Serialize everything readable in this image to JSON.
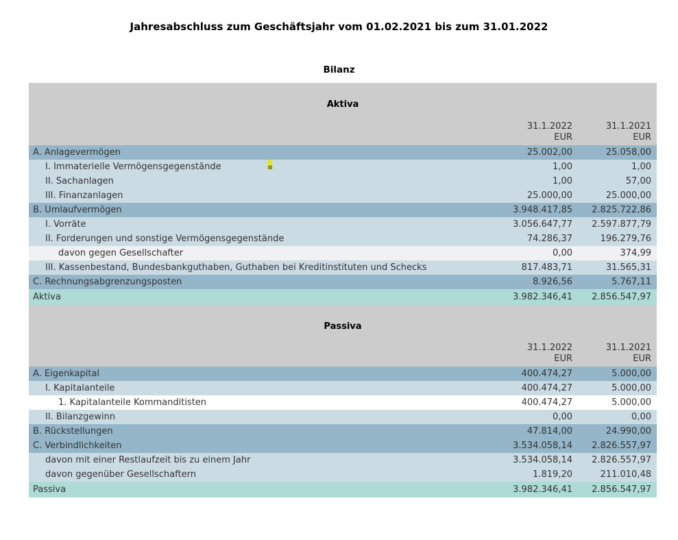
{
  "page": {
    "title": "Jahresabschluss zum Geschäftsjahr vom 01.02.2021 bis zum 31.01.2022",
    "subtitle": "Bilanz"
  },
  "columns": {
    "col1": "31.1.2022",
    "col2": "31.1.2021",
    "unit": "EUR"
  },
  "sections": [
    {
      "heading": "Aktiva",
      "rows": [
        {
          "label": "A. Anlagevermögen",
          "indent": 0,
          "style": "group",
          "v1": "25.002,00",
          "v2": "25.058,00"
        },
        {
          "label": "I. Immaterielle Vermögensgegenstände",
          "indent": 1,
          "style": "item",
          "v1": "1,00",
          "v2": "1,00"
        },
        {
          "label": "II. Sachanlagen",
          "indent": 1,
          "style": "item",
          "v1": "1,00",
          "v2": "57,00"
        },
        {
          "label": "III. Finanzanlagen",
          "indent": 1,
          "style": "item",
          "v1": "25.000,00",
          "v2": "25.000,00"
        },
        {
          "label": "B. Umlaufvermögen",
          "indent": 0,
          "style": "group",
          "v1": "3.948.417,85",
          "v2": "2.825.722,86"
        },
        {
          "label": "I. Vorräte",
          "indent": 1,
          "style": "item",
          "v1": "3.056.647,77",
          "v2": "2.597.877,79"
        },
        {
          "label": "II. Forderungen und sonstige Vermögensgegenstände",
          "indent": 1,
          "style": "item",
          "v1": "74.286,37",
          "v2": "196.279,76"
        },
        {
          "label": "davon gegen Gesellschafter",
          "indent": 2,
          "style": "plain",
          "v1": "0,00",
          "v2": "374,99"
        },
        {
          "label": "III. Kassenbestand, Bundesbankguthaben, Guthaben bei Kreditinstituten und Schecks",
          "indent": 1,
          "style": "item",
          "v1": "817.483,71",
          "v2": "31.565,31"
        },
        {
          "label": "C. Rechnungsabgrenzungsposten",
          "indent": 0,
          "style": "group",
          "v1": "8.926,56",
          "v2": "5.767,11"
        },
        {
          "label": "Aktiva",
          "indent": 0,
          "style": "total",
          "v1": "3.982.346,41",
          "v2": "2.856.547,97"
        }
      ]
    },
    {
      "heading": "Passiva",
      "rows": [
        {
          "label": "A. Eigenkapital",
          "indent": 0,
          "style": "group",
          "v1": "400.474,27",
          "v2": "5.000,00"
        },
        {
          "label": "I. Kapitalanteile",
          "indent": 1,
          "style": "item",
          "v1": "400.474,27",
          "v2": "5.000,00"
        },
        {
          "label": "1. Kapitalanteile Kommanditisten",
          "indent": 2,
          "style": "plain-white",
          "v1": "400.474,27",
          "v2": "5.000,00"
        },
        {
          "label": "II. Bilanzgewinn",
          "indent": 1,
          "style": "item",
          "v1": "0,00",
          "v2": "0,00"
        },
        {
          "label": "B. Rückstellungen",
          "indent": 0,
          "style": "group",
          "v1": "47.814,00",
          "v2": "24.990,00"
        },
        {
          "label": "C. Verbindlichkeiten",
          "indent": 0,
          "style": "group",
          "v1": "3.534.058,14",
          "v2": "2.826.557,97"
        },
        {
          "label": "davon mit einer Restlaufzeit bis zu einem Jahr",
          "indent": 1,
          "style": "item",
          "v1": "3.534.058,14",
          "v2": "2.826.557,97"
        },
        {
          "label": "davon gegenüber Gesellschaftern",
          "indent": 1,
          "style": "item",
          "v1": "1.819,20",
          "v2": "211.010,48"
        },
        {
          "label": "Passiva",
          "indent": 0,
          "style": "total",
          "v1": "3.982.346,41",
          "v2": "2.856.547,97"
        }
      ]
    }
  ],
  "colors": {
    "bg-gray": "#cccccc",
    "row-group": "#95b6c8",
    "row-item": "#cbdbe4",
    "row-plain": "#eff1f2",
    "row-white": "#ffffff",
    "row-total": "#aedbd5",
    "text": "#333333",
    "cursor-top": "#e4e816",
    "cursor-bottom": "#8d9c10"
  }
}
